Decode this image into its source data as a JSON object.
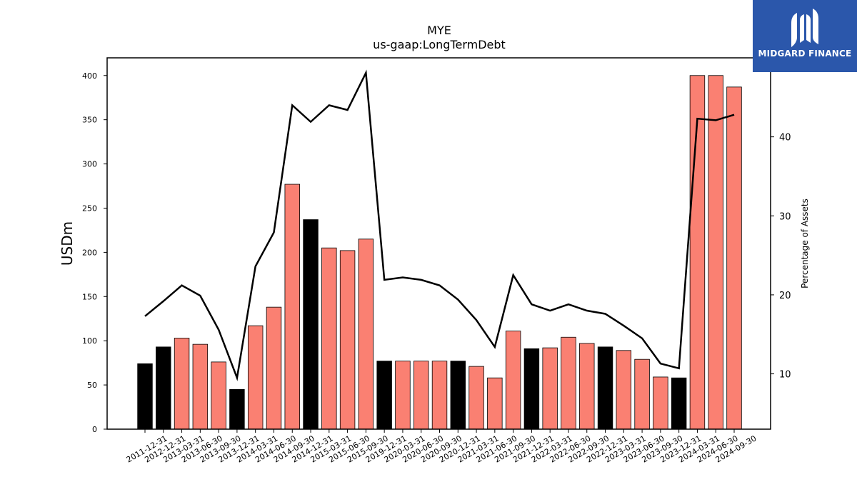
{
  "chart_data": {
    "type": "bar",
    "title": "MYE",
    "subtitle": "us-gaap:LongTermDebt",
    "ylabel": "USDm",
    "y2label": "Percentage of Assets",
    "ylim": [
      0,
      420
    ],
    "y2lim": [
      3,
      50
    ],
    "yticks": [
      0,
      50,
      100,
      150,
      200,
      250,
      300,
      350,
      400
    ],
    "y2ticks": [
      10,
      20,
      30,
      40
    ],
    "grid": false,
    "categories": [
      "2011-12-31",
      "2012-12-31",
      "2013-03-31",
      "2013-06-30",
      "2013-09-30",
      "2013-12-31",
      "2014-03-31",
      "2014-06-30",
      "2014-09-30",
      "2014-12-31",
      "2015-03-31",
      "2015-06-30",
      "2015-09-30",
      "2019-12-31",
      "2020-03-31",
      "2020-06-30",
      "2020-09-30",
      "2020-12-31",
      "2021-03-31",
      "2021-06-30",
      "2021-09-30",
      "2021-12-31",
      "2022-03-31",
      "2022-06-30",
      "2022-09-30",
      "2022-12-31",
      "2023-03-31",
      "2023-06-30",
      "2023-09-30",
      "2023-12-31",
      "2024-03-31",
      "2024-06-30",
      "2024-09-30"
    ],
    "series": [
      {
        "kind": "bar",
        "values": [
          74,
          93,
          103,
          96,
          76,
          45,
          117,
          138,
          277,
          237,
          205,
          202,
          215,
          77,
          77,
          77,
          77,
          77,
          71,
          58,
          111,
          91,
          92,
          104,
          97,
          93,
          89,
          79,
          59,
          58,
          400,
          400,
          387
        ],
        "year_end": [
          true,
          true,
          false,
          false,
          false,
          true,
          false,
          false,
          false,
          true,
          false,
          false,
          false,
          true,
          false,
          false,
          false,
          true,
          false,
          false,
          false,
          true,
          false,
          false,
          false,
          true,
          false,
          false,
          false,
          true,
          false,
          false,
          false
        ],
        "colors": {
          "year_end": "#000000",
          "quarter": "#fa8072"
        }
      },
      {
        "kind": "line",
        "axis": "right",
        "color": "#000000",
        "values": [
          17.3,
          19.2,
          21.2,
          19.9,
          15.6,
          9.5,
          23.6,
          27.9,
          44.0,
          41.9,
          44.0,
          43.4,
          48.1,
          21.9,
          22.2,
          21.9,
          21.2,
          19.4,
          16.8,
          13.4,
          22.5,
          18.8,
          18.0,
          18.8,
          18.0,
          17.6,
          16.1,
          14.5,
          11.3,
          10.7,
          42.3,
          42.1,
          42.8
        ]
      }
    ]
  },
  "logo": {
    "text": "MIDGARD FINANCE",
    "background": "#2b57ab"
  }
}
